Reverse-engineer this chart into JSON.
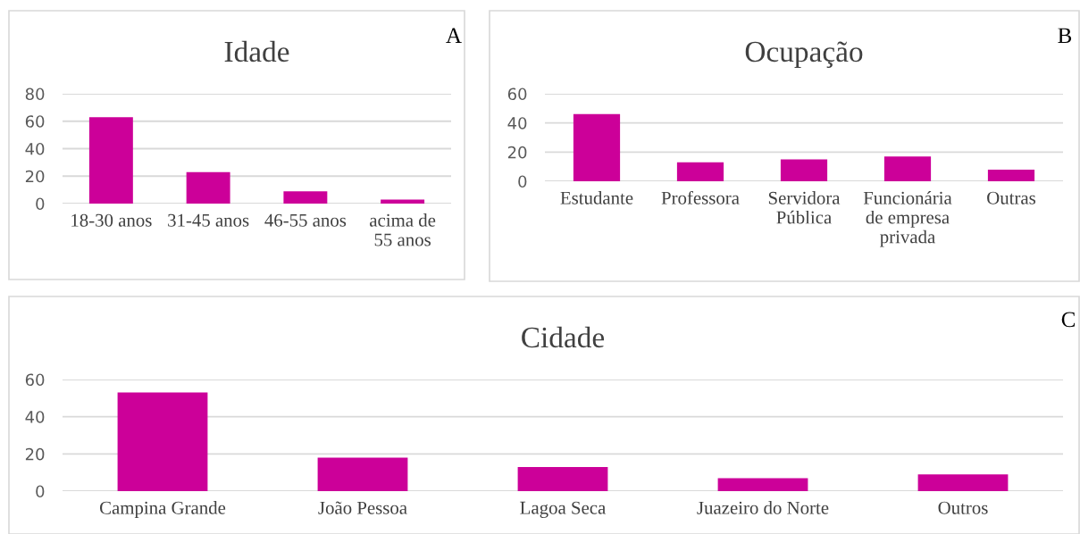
{
  "chart_data": [
    {
      "type": "bar",
      "title": "Idade",
      "annotations": [
        "A"
      ],
      "categories": [
        "18-30 anos",
        "31-45 anos",
        "46-55 anos",
        "acima de 55 anos"
      ],
      "values": [
        63,
        23,
        9,
        3
      ],
      "color": "#cc0099",
      "ylim": [
        0,
        80
      ],
      "yticks": [
        0,
        20,
        40,
        60,
        80
      ],
      "grid": "y"
    },
    {
      "type": "bar",
      "title": "Ocupação",
      "annotations": [
        "B"
      ],
      "categories": [
        "Estudante",
        "Professora",
        "Servidora Pública",
        "Funcionária de empresa privada",
        "Outras"
      ],
      "values": [
        46,
        13,
        15,
        17,
        8
      ],
      "color": "#cc0099",
      "ylim": [
        0,
        60
      ],
      "yticks": [
        0,
        20,
        40,
        60
      ],
      "grid": "y"
    },
    {
      "type": "bar",
      "title": "Cidade",
      "annotations": [
        "C"
      ],
      "categories": [
        "Campina Grande",
        "João Pessoa",
        "Lagoa Seca",
        "Juazeiro do Norte",
        "Outros"
      ],
      "values": [
        53,
        18,
        13,
        7,
        9
      ],
      "color": "#cc0099",
      "ylim": [
        0,
        60
      ],
      "yticks": [
        0,
        20,
        40,
        60
      ],
      "grid": "y"
    }
  ]
}
